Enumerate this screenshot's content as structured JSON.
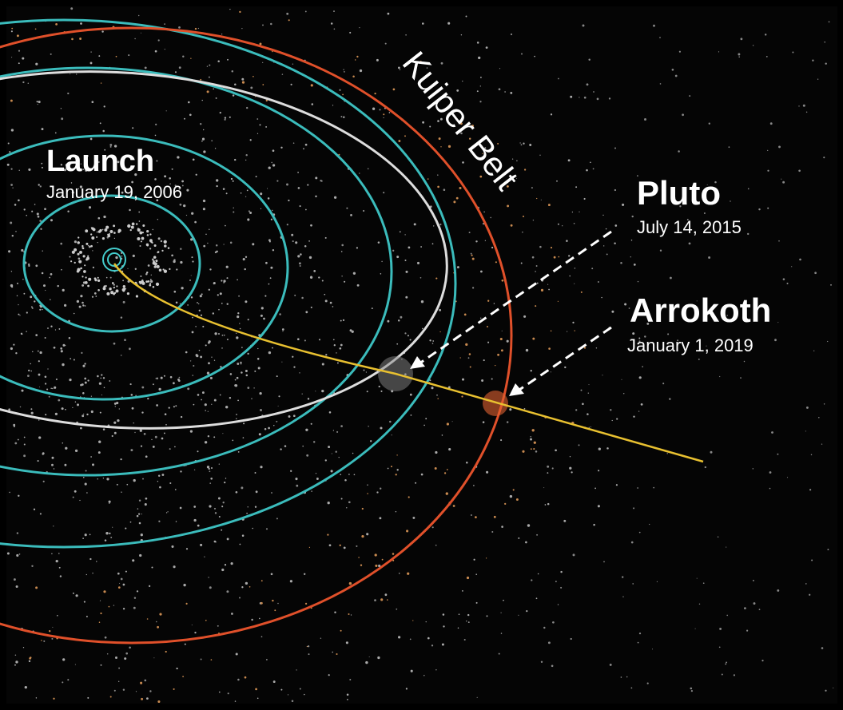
{
  "belt_label": "Kuiper Belt",
  "launch": {
    "title": "Launch",
    "date": "January 19, 2006"
  },
  "pluto": {
    "title": "Pluto",
    "date": "July 14, 2015"
  },
  "arrokoth": {
    "title": "Arrokoth",
    "date": "January 1, 2019"
  }
}
